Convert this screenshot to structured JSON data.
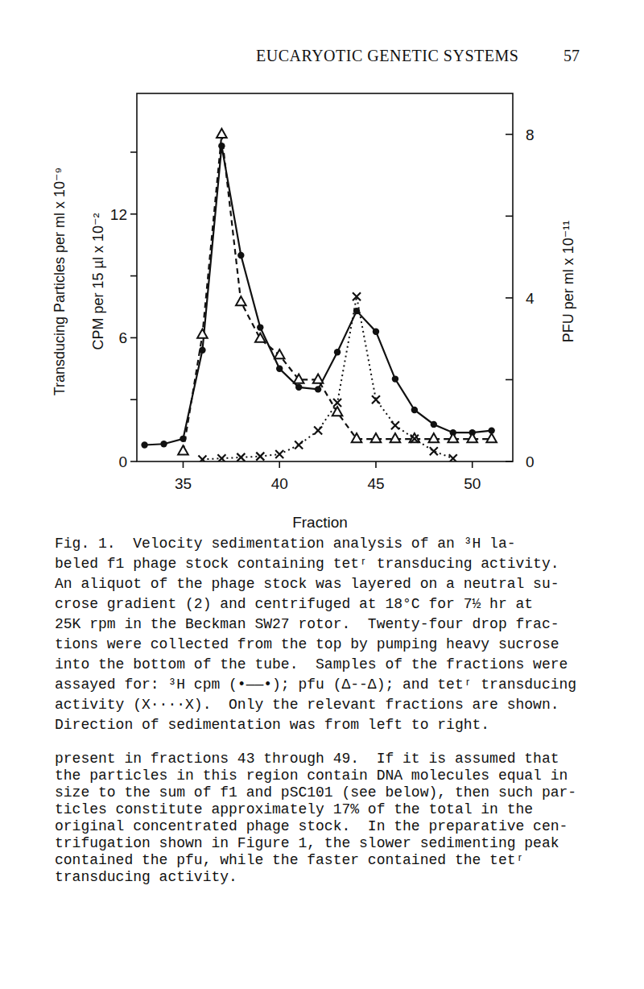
{
  "header": {
    "title": "EUCARYOTIC GENETIC SYSTEMS",
    "page": "57"
  },
  "chart_data": {
    "type": "line",
    "x_label": "Fraction",
    "y_label": [
      "Transducing Particles per ml x 10⁻⁹",
      "CPM per 15 µl x 10⁻²"
    ],
    "y2_label": "PFU per ml x 10⁻¹¹",
    "x": [
      33,
      34,
      35,
      36,
      37,
      38,
      39,
      40,
      41,
      42,
      43,
      44,
      45,
      46,
      47,
      48,
      49,
      50,
      51
    ],
    "xlim": [
      32.6,
      52.1
    ],
    "xticks": [
      35,
      40,
      45,
      50
    ],
    "ylim": [
      0,
      17.85
    ],
    "yticks": [
      0,
      6,
      12
    ],
    "y2lim": [
      0,
      9
    ],
    "y2ticks": [
      0,
      4,
      8
    ],
    "series": [
      {
        "color": "#111111",
        "marker": "circle",
        "line_style": "solid",
        "values": [
          0.8,
          0.85,
          1.1,
          5.4,
          15.3,
          10.0,
          6.5,
          4.5,
          3.6,
          3.5,
          5.3,
          7.3,
          6.3,
          4.0,
          2.5,
          1.8,
          1.4,
          1.4,
          1.5
        ]
      },
      {
        "color": "#111111",
        "marker": "triangle",
        "line_style": "dashed",
        "axis": "y2",
        "values": [
          null,
          null,
          0.25,
          3.1,
          8.0,
          3.9,
          3.0,
          2.6,
          2.0,
          2.0,
          1.2,
          0.55,
          0.55,
          0.55,
          0.55,
          0.55,
          0.55,
          0.55,
          0.55
        ]
      },
      {
        "color": "#111111",
        "marker": "x",
        "line_style": "dotted",
        "values": [
          null,
          null,
          null,
          0.1,
          0.15,
          0.2,
          0.25,
          0.35,
          0.8,
          1.5,
          2.85,
          8.0,
          3.0,
          1.75,
          1.1,
          0.5,
          0.15,
          null,
          null
        ]
      }
    ]
  },
  "caption": [
    "Fig. 1.  Velocity sedimentation analysis of an ³H la-",
    "beled f1 phage stock containing tetʳ transducing activity.",
    "An aliquot of the phage stock was layered on a neutral su-",
    "crose gradient (2) and centrifuged at 18°C for 7½ hr at",
    "25K rpm in the Beckman SW27 rotor.  Twenty-four drop frac-",
    "tions were collected from the top by pumping heavy sucrose",
    "into the bottom of the tube.  Samples of the fractions were",
    "assayed for: ³H cpm (•——•); pfu (Δ--Δ); and tetʳ transducing",
    "activity (X····X).  Only the relevant fractions are shown.",
    "Direction of sedimentation was from left to right."
  ],
  "body": [
    "present in fractions 43 through 49.  If it is assumed that",
    "the particles in this region contain DNA molecules equal in",
    "size to the sum of f1 and pSC101 (see below), then such par-",
    "ticles constitute approximately 17% of the total in the",
    "original concentrated phage stock.  In the preparative cen-",
    "trifugation shown in Figure 1, the slower sedimenting peak",
    "contained the pfu, while the faster contained the tetʳ",
    "transducing activity."
  ]
}
